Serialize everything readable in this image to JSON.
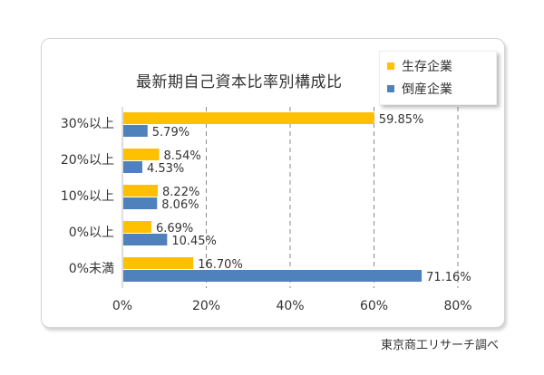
{
  "chart_data": {
    "type": "bar",
    "orientation": "horizontal",
    "title": "最新期自己資本比率別構成比",
    "categories": [
      "30%以上",
      "20%以上",
      "10%以上",
      "0%以上",
      "0%未満"
    ],
    "series": [
      {
        "name": "生存企業",
        "color": "#ffc000",
        "values": [
          59.85,
          8.54,
          8.22,
          6.69,
          16.7
        ]
      },
      {
        "name": "倒産企業",
        "color": "#4f81bd",
        "values": [
          5.79,
          4.53,
          8.06,
          10.45,
          71.16
        ]
      }
    ],
    "xlim": [
      0,
      80
    ],
    "xticks": [
      0,
      20,
      40,
      60,
      80
    ],
    "tick_suffix": "%",
    "value_suffix": "%",
    "gridlines": "vertical-dashed",
    "legend_position": "top-right"
  },
  "source": "東京商工リサーチ調べ"
}
